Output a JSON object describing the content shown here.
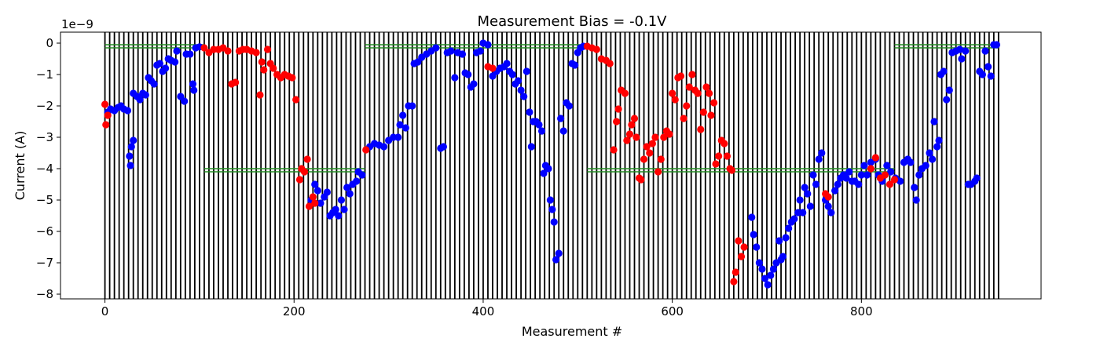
{
  "chart_data": {
    "type": "scatter",
    "title": "Measurement Bias = -0.1V",
    "xlabel": "Measurement #",
    "ylabel": "Current (A)",
    "y_scale_label": "1e−9",
    "xlim": [
      -47,
      990
    ],
    "ylim": [
      -8.15,
      0.35
    ],
    "x_ticks": [
      0,
      200,
      400,
      600,
      800
    ],
    "x_tick_labels": [
      "0",
      "200",
      "400",
      "600",
      "800"
    ],
    "y_ticks": [
      0,
      -1,
      -2,
      -3,
      -4,
      -5,
      -6,
      -7,
      -8
    ],
    "y_tick_labels": [
      "0",
      "−1",
      "−2",
      "−3",
      "−4",
      "−5",
      "−6",
      "−7",
      "−8"
    ],
    "vertical_lines": {
      "start": 0,
      "end": 945,
      "step": 5,
      "color": "#000000"
    },
    "reference_lines": {
      "color": "#228B22",
      "segments": [
        {
          "x": [
            0,
            105
          ],
          "y": -0.1
        },
        {
          "x": [
            105,
            275
          ],
          "y": -4.05
        },
        {
          "x": [
            275,
            510
          ],
          "y": -0.1
        },
        {
          "x": [
            510,
            835
          ],
          "y": -4.05
        },
        {
          "x": [
            835,
            945
          ],
          "y": -0.1
        }
      ]
    },
    "series": [
      {
        "color": "#0000ff",
        "points": [
          [
            3,
            -2.2
          ],
          [
            6,
            -2.1
          ],
          [
            10,
            -2.15
          ],
          [
            14,
            -2.05
          ],
          [
            17,
            -2.0
          ],
          [
            20,
            -2.1
          ],
          [
            24,
            -2.15
          ],
          [
            26,
            -3.6
          ],
          [
            27,
            -3.9
          ],
          [
            28,
            -3.3
          ],
          [
            30,
            -3.1
          ],
          [
            30,
            -1.6
          ],
          [
            34,
            -1.7
          ],
          [
            37,
            -1.8
          ],
          [
            40,
            -1.6
          ],
          [
            43,
            -1.65
          ],
          [
            46,
            -1.1
          ],
          [
            49,
            -1.2
          ],
          [
            52,
            -1.3
          ],
          [
            55,
            -0.7
          ],
          [
            58,
            -0.65
          ],
          [
            61,
            -0.9
          ],
          [
            64,
            -0.8
          ],
          [
            67,
            -0.5
          ],
          [
            70,
            -0.55
          ],
          [
            74,
            -0.6
          ],
          [
            76,
            -0.25
          ],
          [
            80,
            -1.7
          ],
          [
            84,
            -1.85
          ],
          [
            86,
            -0.35
          ],
          [
            90,
            -0.35
          ],
          [
            93,
            -1.3
          ],
          [
            94,
            -1.5
          ],
          [
            96,
            -0.15
          ],
          [
            100,
            -0.12
          ],
          [
            218,
            -5.0
          ],
          [
            222,
            -4.5
          ],
          [
            225,
            -4.7
          ],
          [
            228,
            -5.1
          ],
          [
            232,
            -4.9
          ],
          [
            235,
            -4.75
          ],
          [
            238,
            -5.5
          ],
          [
            241,
            -5.4
          ],
          [
            244,
            -5.3
          ],
          [
            247,
            -5.5
          ],
          [
            250,
            -5.0
          ],
          [
            253,
            -5.3
          ],
          [
            256,
            -4.6
          ],
          [
            259,
            -4.8
          ],
          [
            262,
            -4.5
          ],
          [
            266,
            -4.4
          ],
          [
            268,
            -4.1
          ],
          [
            272,
            -4.2
          ],
          [
            280,
            -3.3
          ],
          [
            285,
            -3.2
          ],
          [
            290,
            -3.25
          ],
          [
            295,
            -3.3
          ],
          [
            300,
            -3.1
          ],
          [
            305,
            -3.0
          ],
          [
            310,
            -3.0
          ],
          [
            312,
            -2.6
          ],
          [
            315,
            -2.3
          ],
          [
            318,
            -2.7
          ],
          [
            321,
            -2.0
          ],
          [
            325,
            -2.0
          ],
          [
            327,
            -0.65
          ],
          [
            331,
            -0.6
          ],
          [
            335,
            -0.45
          ],
          [
            340,
            -0.35
          ],
          [
            345,
            -0.25
          ],
          [
            350,
            -0.15
          ],
          [
            355,
            -3.35
          ],
          [
            358,
            -3.3
          ],
          [
            362,
            -0.3
          ],
          [
            366,
            -0.25
          ],
          [
            370,
            -1.1
          ],
          [
            373,
            -0.3
          ],
          [
            378,
            -0.35
          ],
          [
            381,
            -0.95
          ],
          [
            384,
            -1.0
          ],
          [
            387,
            -1.4
          ],
          [
            390,
            -1.3
          ],
          [
            393,
            -0.3
          ],
          [
            397,
            -0.25
          ],
          [
            400,
            0.0
          ],
          [
            405,
            -0.05
          ],
          [
            410,
            -1.05
          ],
          [
            414,
            -0.9
          ],
          [
            418,
            -0.8
          ],
          [
            422,
            -0.75
          ],
          [
            425,
            -0.65
          ],
          [
            428,
            -0.9
          ],
          [
            431,
            -1.0
          ],
          [
            434,
            -1.3
          ],
          [
            437,
            -1.2
          ],
          [
            440,
            -1.5
          ],
          [
            443,
            -1.7
          ],
          [
            446,
            -0.9
          ],
          [
            449,
            -2.2
          ],
          [
            451,
            -3.3
          ],
          [
            453,
            -2.5
          ],
          [
            456,
            -2.5
          ],
          [
            459,
            -2.6
          ],
          [
            462,
            -2.8
          ],
          [
            464,
            -4.15
          ],
          [
            466,
            -3.9
          ],
          [
            469,
            -4.0
          ],
          [
            471,
            -5.0
          ],
          [
            473,
            -5.3
          ],
          [
            475,
            -5.7
          ],
          [
            477,
            -6.9
          ],
          [
            480,
            -6.7
          ],
          [
            482,
            -2.4
          ],
          [
            485,
            -2.8
          ],
          [
            488,
            -1.9
          ],
          [
            491,
            -2.0
          ],
          [
            494,
            -0.65
          ],
          [
            497,
            -0.7
          ],
          [
            500,
            -0.3
          ],
          [
            503,
            -0.15
          ],
          [
            506,
            -0.1
          ],
          [
            684,
            -5.55
          ],
          [
            686,
            -6.1
          ],
          [
            689,
            -6.5
          ],
          [
            692,
            -7.0
          ],
          [
            695,
            -7.2
          ],
          [
            698,
            -7.5
          ],
          [
            701,
            -7.7
          ],
          [
            704,
            -7.4
          ],
          [
            707,
            -7.2
          ],
          [
            710,
            -7.0
          ],
          [
            713,
            -6.3
          ],
          [
            715,
            -6.9
          ],
          [
            717,
            -6.8
          ],
          [
            720,
            -6.2
          ],
          [
            723,
            -5.9
          ],
          [
            726,
            -5.7
          ],
          [
            729,
            -5.6
          ],
          [
            733,
            -5.4
          ],
          [
            735,
            -5.0
          ],
          [
            738,
            -5.4
          ],
          [
            740,
            -4.6
          ],
          [
            743,
            -4.8
          ],
          [
            746,
            -5.2
          ],
          [
            749,
            -4.2
          ],
          [
            752,
            -4.5
          ],
          [
            755,
            -3.7
          ],
          [
            758,
            -3.5
          ],
          [
            762,
            -5.0
          ],
          [
            765,
            -5.2
          ],
          [
            768,
            -5.4
          ],
          [
            772,
            -4.7
          ],
          [
            775,
            -4.5
          ],
          [
            778,
            -4.3
          ],
          [
            781,
            -4.2
          ],
          [
            784,
            -4.3
          ],
          [
            787,
            -4.1
          ],
          [
            790,
            -4.4
          ],
          [
            793,
            -4.4
          ],
          [
            797,
            -4.5
          ],
          [
            800,
            -4.2
          ],
          [
            803,
            -3.9
          ],
          [
            806,
            -4.2
          ],
          [
            810,
            -3.8
          ],
          [
            815,
            -3.7
          ],
          [
            818,
            -4.2
          ],
          [
            822,
            -4.4
          ],
          [
            827,
            -3.9
          ],
          [
            831,
            -4.1
          ],
          [
            836,
            -4.3
          ],
          [
            841,
            -4.4
          ],
          [
            845,
            -3.8
          ],
          [
            849,
            -3.7
          ],
          [
            852,
            -3.8
          ],
          [
            856,
            -4.6
          ],
          [
            858,
            -5.0
          ],
          [
            861,
            -4.2
          ],
          [
            864,
            -4.0
          ],
          [
            868,
            -3.9
          ],
          [
            872,
            -3.5
          ],
          [
            875,
            -3.7
          ],
          [
            877,
            -2.5
          ],
          [
            880,
            -3.3
          ],
          [
            882,
            -3.1
          ],
          [
            884,
            -1.0
          ],
          [
            887,
            -0.9
          ],
          [
            890,
            -1.8
          ],
          [
            893,
            -1.5
          ],
          [
            896,
            -0.3
          ],
          [
            900,
            -0.25
          ],
          [
            904,
            -0.2
          ],
          [
            906,
            -0.5
          ],
          [
            910,
            -0.25
          ],
          [
            913,
            -4.5
          ],
          [
            916,
            -4.5
          ],
          [
            920,
            -4.4
          ],
          [
            922,
            -4.3
          ],
          [
            925,
            -0.9
          ],
          [
            928,
            -1.0
          ],
          [
            931,
            -0.25
          ],
          [
            934,
            -0.75
          ],
          [
            937,
            -1.05
          ],
          [
            940,
            -0.05
          ],
          [
            943,
            -0.05
          ]
        ]
      },
      {
        "color": "#ff0000",
        "points": [
          [
            0,
            -1.95
          ],
          [
            1,
            -2.6
          ],
          [
            3,
            -2.3
          ],
          [
            105,
            -0.15
          ],
          [
            110,
            -0.3
          ],
          [
            115,
            -0.2
          ],
          [
            120,
            -0.2
          ],
          [
            125,
            -0.15
          ],
          [
            130,
            -0.25
          ],
          [
            134,
            -1.3
          ],
          [
            138,
            -1.25
          ],
          [
            142,
            -0.25
          ],
          [
            146,
            -0.2
          ],
          [
            150,
            -0.2
          ],
          [
            155,
            -0.25
          ],
          [
            160,
            -0.3
          ],
          [
            164,
            -1.65
          ],
          [
            166,
            -0.6
          ],
          [
            168,
            -0.85
          ],
          [
            172,
            -0.2
          ],
          [
            175,
            -0.65
          ],
          [
            178,
            -0.8
          ],
          [
            182,
            -1.0
          ],
          [
            186,
            -1.1
          ],
          [
            190,
            -1.0
          ],
          [
            194,
            -1.05
          ],
          [
            198,
            -1.1
          ],
          [
            202,
            -1.8
          ],
          [
            206,
            -4.35
          ],
          [
            208,
            -4.0
          ],
          [
            211,
            -4.1
          ],
          [
            214,
            -3.7
          ],
          [
            216,
            -5.2
          ],
          [
            220,
            -4.9
          ],
          [
            222,
            -5.1
          ],
          [
            276,
            -3.4
          ],
          [
            405,
            -0.75
          ],
          [
            410,
            -0.8
          ],
          [
            510,
            -0.1
          ],
          [
            515,
            -0.15
          ],
          [
            520,
            -0.2
          ],
          [
            525,
            -0.5
          ],
          [
            530,
            -0.55
          ],
          [
            534,
            -0.65
          ],
          [
            538,
            -3.4
          ],
          [
            541,
            -2.5
          ],
          [
            543,
            -2.1
          ],
          [
            546,
            -1.5
          ],
          [
            550,
            -1.6
          ],
          [
            552,
            -3.1
          ],
          [
            555,
            -2.9
          ],
          [
            557,
            -2.6
          ],
          [
            560,
            -2.4
          ],
          [
            562,
            -3.0
          ],
          [
            565,
            -4.3
          ],
          [
            567,
            -4.35
          ],
          [
            570,
            -3.7
          ],
          [
            573,
            -3.3
          ],
          [
            576,
            -3.5
          ],
          [
            579,
            -3.2
          ],
          [
            582,
            -3.0
          ],
          [
            585,
            -4.1
          ],
          [
            588,
            -3.7
          ],
          [
            591,
            -3.0
          ],
          [
            594,
            -2.8
          ],
          [
            597,
            -2.9
          ],
          [
            600,
            -1.6
          ],
          [
            603,
            -1.8
          ],
          [
            606,
            -1.1
          ],
          [
            609,
            -1.05
          ],
          [
            612,
            -2.4
          ],
          [
            615,
            -2.0
          ],
          [
            618,
            -1.4
          ],
          [
            621,
            -1.0
          ],
          [
            624,
            -1.5
          ],
          [
            627,
            -1.6
          ],
          [
            630,
            -2.75
          ],
          [
            633,
            -2.2
          ],
          [
            636,
            -1.4
          ],
          [
            639,
            -1.6
          ],
          [
            641,
            -2.3
          ],
          [
            644,
            -1.9
          ],
          [
            646,
            -3.85
          ],
          [
            649,
            -3.6
          ],
          [
            652,
            -3.1
          ],
          [
            655,
            -3.2
          ],
          [
            658,
            -3.6
          ],
          [
            661,
            -4.0
          ],
          [
            663,
            -4.05
          ],
          [
            665,
            -7.6
          ],
          [
            667,
            -7.3
          ],
          [
            670,
            -6.3
          ],
          [
            673,
            -6.8
          ],
          [
            676,
            -6.5
          ],
          [
            762,
            -4.8
          ],
          [
            765,
            -4.9
          ],
          [
            810,
            -4.0
          ],
          [
            815,
            -3.65
          ],
          [
            820,
            -4.3
          ],
          [
            825,
            -4.2
          ],
          [
            830,
            -4.5
          ],
          [
            835,
            -4.35
          ]
        ]
      }
    ]
  }
}
